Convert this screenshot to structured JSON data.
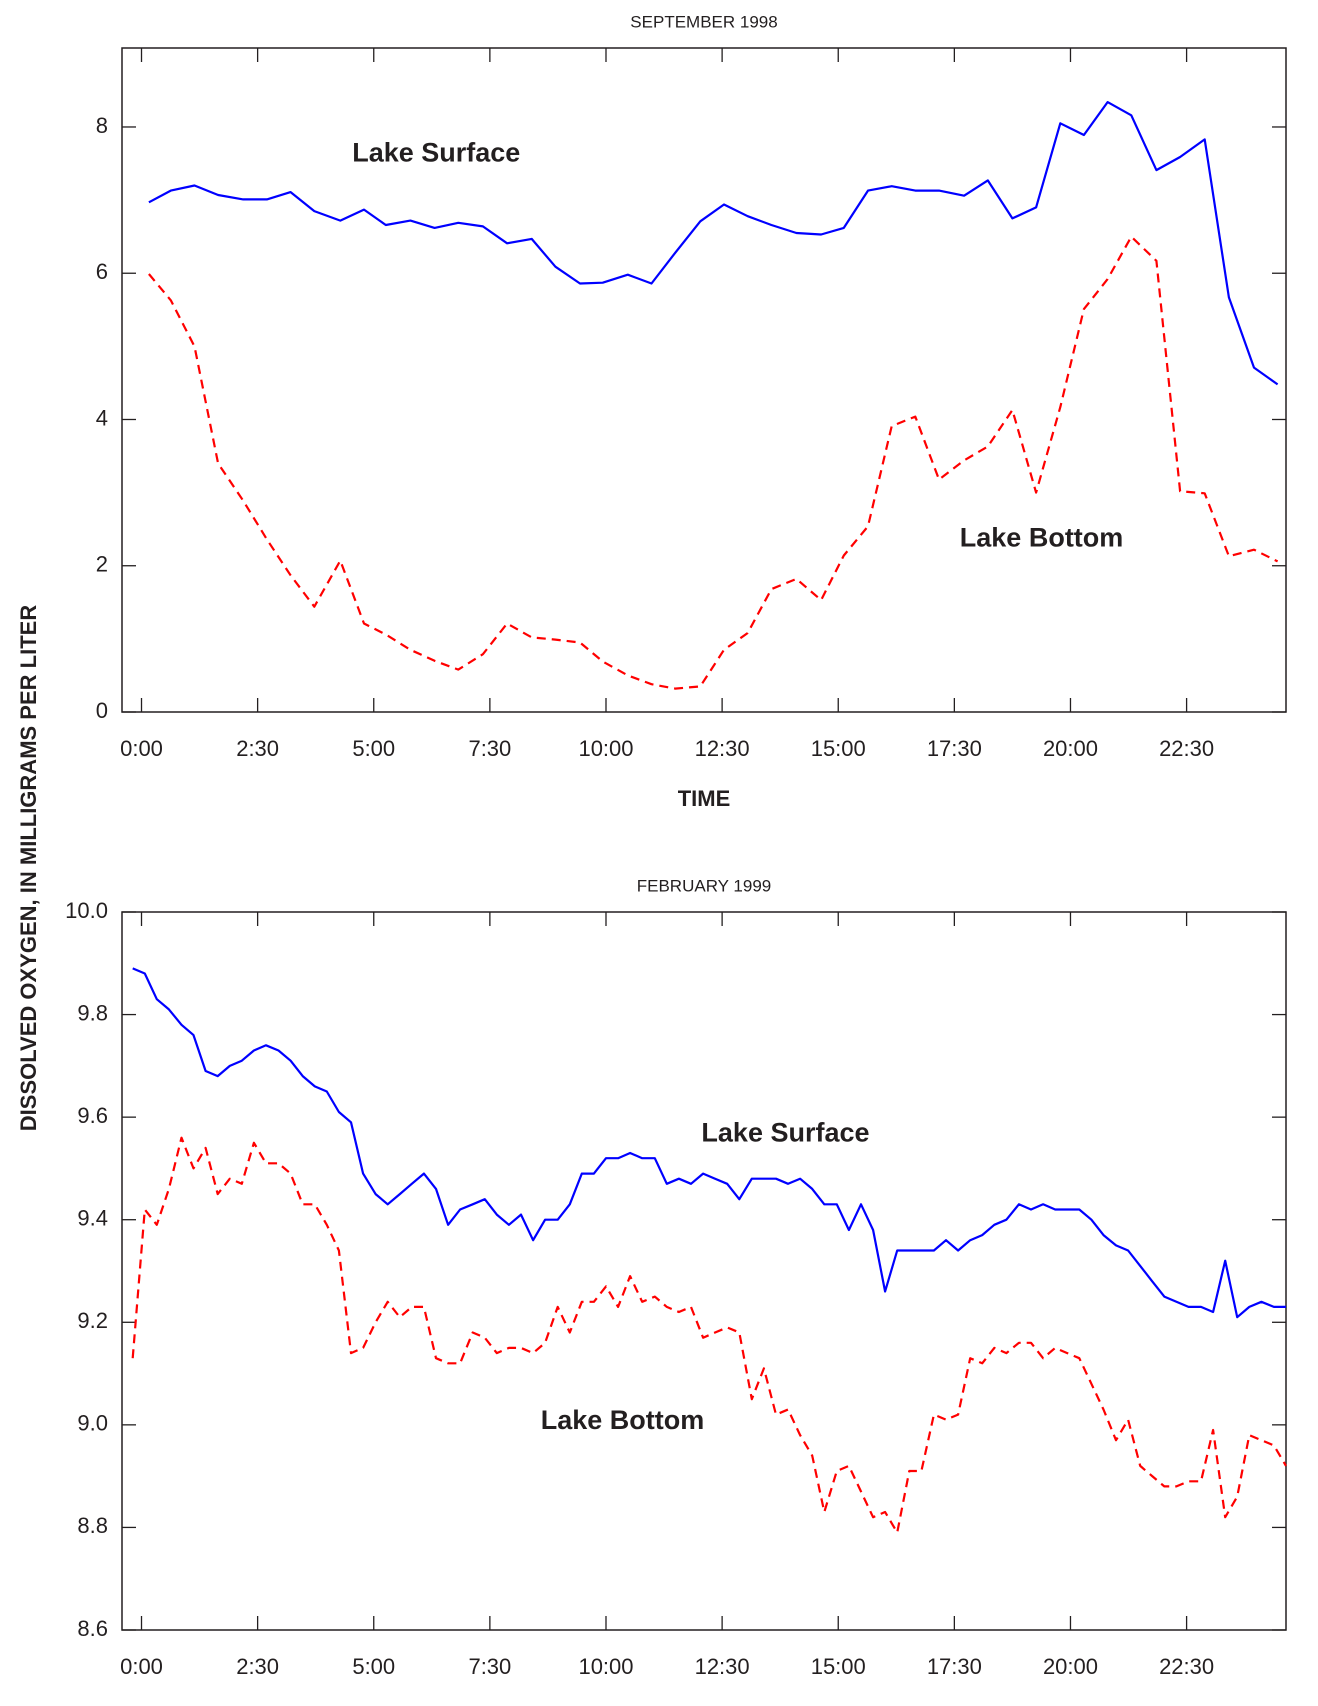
{
  "ylabel": "DISSOLVED OXYGEN, IN MILLIGRAMS PER LITER",
  "chart_data": [
    {
      "type": "line",
      "title": "SEPTEMBER 1998",
      "xlabel": "TIME",
      "xlim": [
        -0.42,
        24.64
      ],
      "ylim": [
        0,
        9.08
      ],
      "xticks": [
        {
          "value": 0,
          "label": "0:00"
        },
        {
          "value": 2.5,
          "label": "2:30"
        },
        {
          "value": 5,
          "label": "5:00"
        },
        {
          "value": 7.5,
          "label": "7:30"
        },
        {
          "value": 10,
          "label": "10:00"
        },
        {
          "value": 12.5,
          "label": "12:30"
        },
        {
          "value": 15,
          "label": "15:00"
        },
        {
          "value": 17.5,
          "label": "17:30"
        },
        {
          "value": 20,
          "label": "20:00"
        },
        {
          "value": 22.5,
          "label": "22:30"
        }
      ],
      "yticks": [
        0,
        2,
        4,
        6,
        8
      ],
      "x": [
        0.16,
        0.63,
        1.14,
        1.65,
        2.19,
        2.7,
        3.21,
        3.72,
        4.28,
        4.79,
        5.26,
        5.79,
        6.31,
        6.82,
        7.35,
        7.87,
        8.4,
        8.91,
        9.44,
        9.93,
        10.47,
        10.98,
        11.49,
        12.03,
        12.54,
        13.05,
        13.56,
        14.1,
        14.63,
        15.12,
        15.64,
        16.15,
        16.66,
        17.17,
        17.71,
        18.22,
        18.75,
        19.26,
        19.78,
        20.29,
        20.8,
        21.31,
        21.85,
        22.36,
        22.89,
        23.41,
        23.95,
        24.46
      ],
      "series": [
        {
          "name": "Lake Surface",
          "color": "#0000ff",
          "dashed": false,
          "values": [
            6.97,
            7.13,
            7.2,
            7.07,
            7.01,
            7.01,
            7.11,
            6.85,
            6.72,
            6.87,
            6.66,
            6.72,
            6.62,
            6.69,
            6.64,
            6.41,
            6.47,
            6.09,
            5.86,
            5.87,
            5.98,
            5.86,
            6.28,
            6.71,
            6.94,
            6.78,
            6.66,
            6.55,
            6.53,
            6.62,
            7.13,
            7.19,
            7.13,
            7.13,
            7.06,
            7.27,
            6.75,
            6.9,
            8.05,
            7.89,
            8.34,
            8.16,
            7.41,
            7.59,
            7.83,
            5.67,
            4.71,
            4.48
          ]
        },
        {
          "name": "Lake Bottom",
          "color": "#ff0000",
          "dashed": true,
          "values": [
            5.99,
            5.63,
            5.0,
            3.4,
            2.89,
            2.36,
            1.87,
            1.44,
            2.07,
            1.21,
            1.06,
            0.85,
            0.7,
            0.58,
            0.79,
            1.21,
            1.02,
            0.99,
            0.95,
            0.69,
            0.5,
            0.38,
            0.32,
            0.35,
            0.85,
            1.08,
            1.68,
            1.82,
            1.53,
            2.14,
            2.54,
            3.91,
            4.04,
            3.18,
            3.44,
            3.63,
            4.13,
            3.0,
            4.17,
            5.51,
            5.92,
            6.5,
            6.17,
            3.02,
            2.99,
            2.13,
            2.22,
            2.06
          ]
        }
      ]
    },
    {
      "type": "line",
      "title": "FEBRUARY 1999",
      "xlabel": "TIME",
      "xlim": [
        -0.42,
        24.64
      ],
      "ylim": [
        8.6,
        10.0
      ],
      "xticks": [
        {
          "value": 0,
          "label": "0:00"
        },
        {
          "value": 2.5,
          "label": "2:30"
        },
        {
          "value": 5,
          "label": "5:00"
        },
        {
          "value": 7.5,
          "label": "7:30"
        },
        {
          "value": 10,
          "label": "10:00"
        },
        {
          "value": 12.5,
          "label": "12:30"
        },
        {
          "value": 15,
          "label": "15:00"
        },
        {
          "value": 17.5,
          "label": "17:30"
        },
        {
          "value": 20,
          "label": "20:00"
        },
        {
          "value": 22.5,
          "label": "22:30"
        }
      ],
      "yticks": [
        8.6,
        8.8,
        {
          "value": 9,
          "label": "9.0"
        },
        9.2,
        9.4,
        9.6,
        9.8,
        {
          "value": 10,
          "label": "10.0"
        }
      ],
      "x": [
        -0.19,
        0.07,
        0.33,
        0.59,
        0.86,
        1.12,
        1.38,
        1.64,
        1.9,
        2.16,
        2.42,
        2.68,
        2.95,
        3.21,
        3.47,
        3.73,
        3.99,
        4.25,
        4.51,
        4.77,
        5.04,
        5.3,
        5.56,
        5.82,
        6.08,
        6.34,
        6.6,
        6.86,
        7.13,
        7.39,
        7.65,
        7.91,
        8.17,
        8.43,
        8.69,
        8.96,
        9.22,
        9.48,
        9.74,
        10.0,
        10.26,
        10.52,
        10.78,
        11.05,
        11.31,
        11.57,
        11.83,
        12.09,
        12.35,
        12.61,
        12.87,
        13.14,
        13.4,
        13.66,
        13.92,
        14.18,
        14.44,
        14.7,
        14.97,
        15.23,
        15.49,
        15.75,
        16.01,
        16.27,
        16.53,
        16.79,
        17.06,
        17.32,
        17.58,
        17.84,
        18.1,
        18.36,
        18.62,
        18.89,
        19.15,
        19.41,
        19.67,
        19.93,
        20.19,
        20.45,
        20.71,
        20.98,
        21.24,
        21.5,
        21.76,
        22.02,
        22.28,
        22.54,
        22.81,
        23.07,
        23.33,
        23.59,
        23.85,
        24.11,
        24.38,
        24.64
      ],
      "series": [
        {
          "name": "Lake Surface",
          "color": "#0000ff",
          "dashed": false,
          "values": [
            9.89,
            9.88,
            9.83,
            9.81,
            9.78,
            9.76,
            9.69,
            9.68,
            9.7,
            9.71,
            9.73,
            9.74,
            9.73,
            9.71,
            9.68,
            9.66,
            9.65,
            9.61,
            9.59,
            9.49,
            9.45,
            9.43,
            9.45,
            9.47,
            9.49,
            9.46,
            9.39,
            9.42,
            9.43,
            9.44,
            9.41,
            9.39,
            9.41,
            9.36,
            9.4,
            9.4,
            9.43,
            9.49,
            9.49,
            9.52,
            9.52,
            9.53,
            9.52,
            9.52,
            9.47,
            9.48,
            9.47,
            9.49,
            9.48,
            9.47,
            9.44,
            9.48,
            9.48,
            9.48,
            9.47,
            9.48,
            9.46,
            9.43,
            9.43,
            9.38,
            9.43,
            9.38,
            9.26,
            9.34,
            9.34,
            9.34,
            9.34,
            9.36,
            9.34,
            9.36,
            9.37,
            9.39,
            9.4,
            9.43,
            9.42,
            9.43,
            9.42,
            9.42,
            9.42,
            9.4,
            9.37,
            9.35,
            9.34,
            9.31,
            9.28,
            9.25,
            9.24,
            9.23,
            9.23,
            9.22,
            9.32,
            9.21,
            9.23,
            9.24,
            9.23,
            9.23
          ]
        },
        {
          "name": "Lake Bottom",
          "color": "#ff0000",
          "dashed": true,
          "values": [
            9.13,
            9.42,
            9.39,
            9.46,
            9.56,
            9.5,
            9.54,
            9.45,
            9.48,
            9.47,
            9.55,
            9.51,
            9.51,
            9.49,
            9.43,
            9.43,
            9.39,
            9.34,
            9.14,
            9.15,
            9.2,
            9.24,
            9.21,
            9.23,
            9.23,
            9.13,
            9.12,
            9.12,
            9.18,
            9.17,
            9.14,
            9.15,
            9.15,
            9.14,
            9.16,
            9.23,
            9.18,
            9.24,
            9.24,
            9.27,
            9.23,
            9.29,
            9.24,
            9.25,
            9.23,
            9.22,
            9.23,
            9.17,
            9.18,
            9.19,
            9.18,
            9.05,
            9.11,
            9.02,
            9.03,
            8.98,
            8.94,
            8.83,
            8.91,
            8.92,
            8.87,
            8.82,
            8.83,
            8.79,
            8.91,
            8.91,
            9.02,
            9.01,
            9.02,
            9.13,
            9.12,
            9.15,
            9.14,
            9.16,
            9.16,
            9.13,
            9.15,
            9.14,
            9.13,
            9.08,
            9.03,
            8.97,
            9.01,
            8.92,
            8.9,
            8.88,
            8.88,
            8.89,
            8.89,
            8.99,
            8.82,
            8.86,
            8.98,
            8.97,
            8.96,
            8.92
          ]
        }
      ]
    }
  ]
}
